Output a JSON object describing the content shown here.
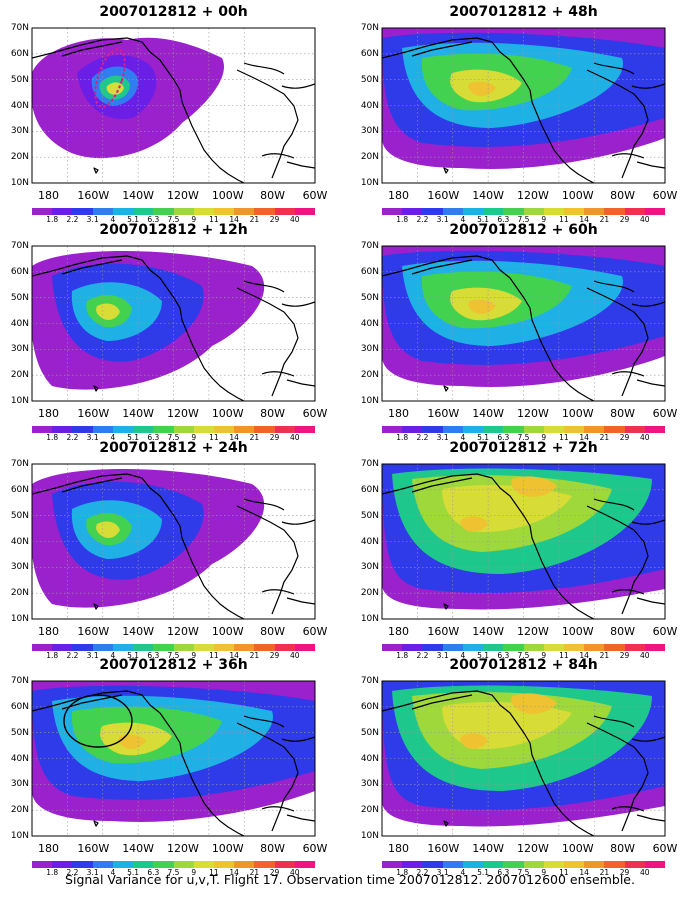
{
  "panels": [
    {
      "title": "2007012812 + 00h",
      "scheme": 0,
      "marker": "dotted-ellipse"
    },
    {
      "title": "2007012812 + 48h",
      "scheme": 2,
      "marker": "none"
    },
    {
      "title": "2007012812 + 12h",
      "scheme": 1,
      "marker": "none"
    },
    {
      "title": "2007012812 + 60h",
      "scheme": 2,
      "marker": "none"
    },
    {
      "title": "2007012812 + 24h",
      "scheme": 1,
      "marker": "none"
    },
    {
      "title": "2007012812 + 72h",
      "scheme": 3,
      "marker": "none"
    },
    {
      "title": "2007012812 + 36h",
      "scheme": 2,
      "marker": "solid-circle"
    },
    {
      "title": "2007012812 + 84h",
      "scheme": 3,
      "marker": "none"
    }
  ],
  "y_labels": [
    "70N",
    "60N",
    "50N",
    "40N",
    "30N",
    "20N",
    "10N"
  ],
  "x_labels": [
    "180",
    "160W",
    "140W",
    "120W",
    "100W",
    "80W",
    "60W"
  ],
  "colorbar": {
    "labels": [
      "1.8",
      "2.2",
      "3.1",
      "4",
      "5.1",
      "6.3",
      "7.5",
      "9",
      "11",
      "14",
      "21",
      "29",
      "40"
    ],
    "colors": [
      "#9a21cc",
      "#6a1ee6",
      "#2f3ae8",
      "#2f7df0",
      "#1fb0e6",
      "#1ec88c",
      "#43d250",
      "#9ed83a",
      "#d7dc36",
      "#efc232",
      "#f09628",
      "#f0642a",
      "#f03050",
      "#f01482"
    ]
  },
  "caption": "Signal Variance for u,v,T. Flight 17. Observation time 2007012812. 2007012600 ensemble."
}
